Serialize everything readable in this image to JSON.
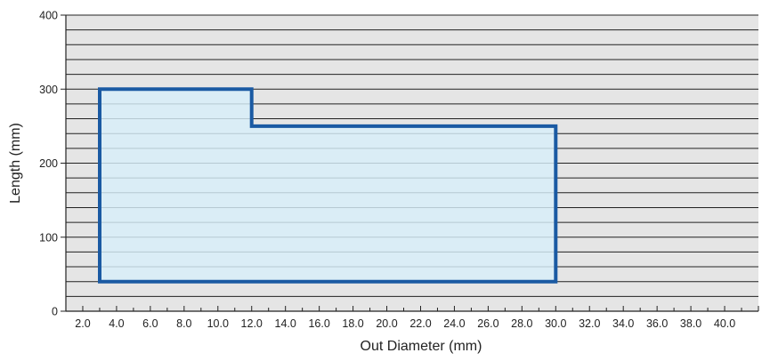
{
  "chart_data": {
    "type": "area",
    "xlabel": "Out Diameter (mm)",
    "ylabel": "Length (mm)",
    "x_ticks": [
      "2.0",
      "4.0",
      "6.0",
      "8.0",
      "10.0",
      "12.0",
      "14.0",
      "16.0",
      "18.0",
      "20.0",
      "22.0",
      "24.0",
      "26.0",
      "28.0",
      "30.0",
      "32.0",
      "34.0",
      "36.0",
      "38.0",
      "40.0"
    ],
    "y_ticks": [
      "0",
      "100",
      "200",
      "300",
      "400"
    ],
    "xlim": [
      1,
      42
    ],
    "ylim": [
      0,
      400
    ],
    "grid": true,
    "grid_step_y": 20,
    "series": [
      {
        "points": [
          [
            3,
            40
          ],
          [
            3,
            300
          ],
          [
            12,
            300
          ],
          [
            12,
            250
          ],
          [
            30,
            250
          ],
          [
            30,
            40
          ]
        ]
      }
    ],
    "colors": {
      "plot_background": "#e5e5e5",
      "grid": "#222222",
      "region_fill": "#d7eef9",
      "region_stroke": "#1a5aa3",
      "axis": "#222222"
    }
  }
}
